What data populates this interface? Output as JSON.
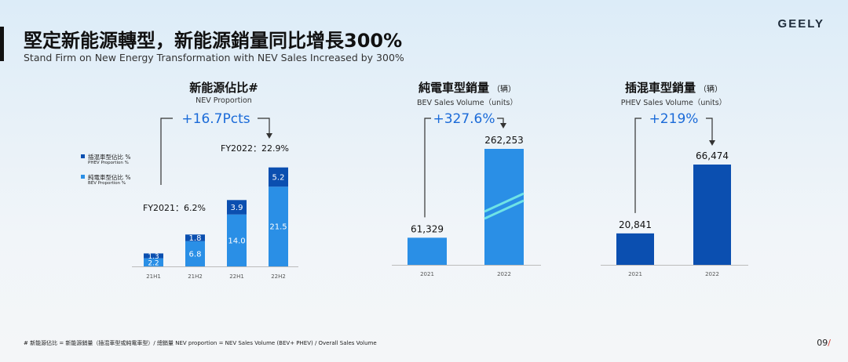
{
  "header": {
    "brand": "GEELY",
    "title": "堅定新能源轉型，新能源銷量同比增長300%",
    "subtitle": "Stand Firm on New Energy Transformation with NEV Sales Increased by 300%"
  },
  "colors": {
    "phev": "#0b4fb0",
    "bev": "#2a8fe6",
    "accent": "#1a6ad8",
    "page_slash": "#d63a2f"
  },
  "chart_data": [
    {
      "type": "bar",
      "title": "新能源佔比#",
      "subtitle": "NEV Proportion",
      "categories": [
        "21H1",
        "21H2",
        "22H1",
        "22H2"
      ],
      "series": [
        {
          "name": "純電車型佔比 %",
          "name_en": "BEV Proportion %",
          "values": [
            2.2,
            6.8,
            14.0,
            21.5
          ],
          "labels": [
            "2.2",
            "6.8",
            "14.0",
            "21.5"
          ]
        },
        {
          "name": "插混車型佔比 %",
          "name_en": "PHEV Proportion %",
          "values": [
            1.3,
            1.8,
            3.9,
            5.2
          ],
          "labels": [
            "1.3",
            "1.8",
            "3.9",
            "5.2"
          ]
        }
      ],
      "stacked": true,
      "ylim": [
        0,
        27.9
      ],
      "annotations": {
        "growth": "+16.7Pcts",
        "start": "FY2021：6.2%",
        "end": "FY2022：22.9%"
      },
      "legend": "left"
    },
    {
      "type": "bar",
      "title": "純電車型銷量",
      "title_unit": "（辆）",
      "subtitle": "BEV Sales Volume（units）",
      "categories": [
        "2021",
        "2022"
      ],
      "values": [
        61329,
        262253
      ],
      "labels": [
        "61,329",
        "262,253"
      ],
      "ylim": [
        0,
        262253
      ],
      "annotations": {
        "growth": "+327.6%"
      }
    },
    {
      "type": "bar",
      "title": "插混車型銷量",
      "title_unit": "（辆）",
      "subtitle": "PHEV Sales Volume（units）",
      "categories": [
        "2021",
        "2022"
      ],
      "values": [
        20841,
        66474
      ],
      "labels": [
        "20,841",
        "66,474"
      ],
      "ylim": [
        0,
        66474
      ],
      "annotations": {
        "growth": "+219%"
      }
    }
  ],
  "footer": {
    "footnote": "#  新能源佔比 = 新能源銷量（插混車型或純電車型）/ 總銷量      NEV proportion = NEV Sales Volume (BEV+ PHEV) / Overall Sales Volume",
    "page": "09",
    "page_slash": "/"
  }
}
